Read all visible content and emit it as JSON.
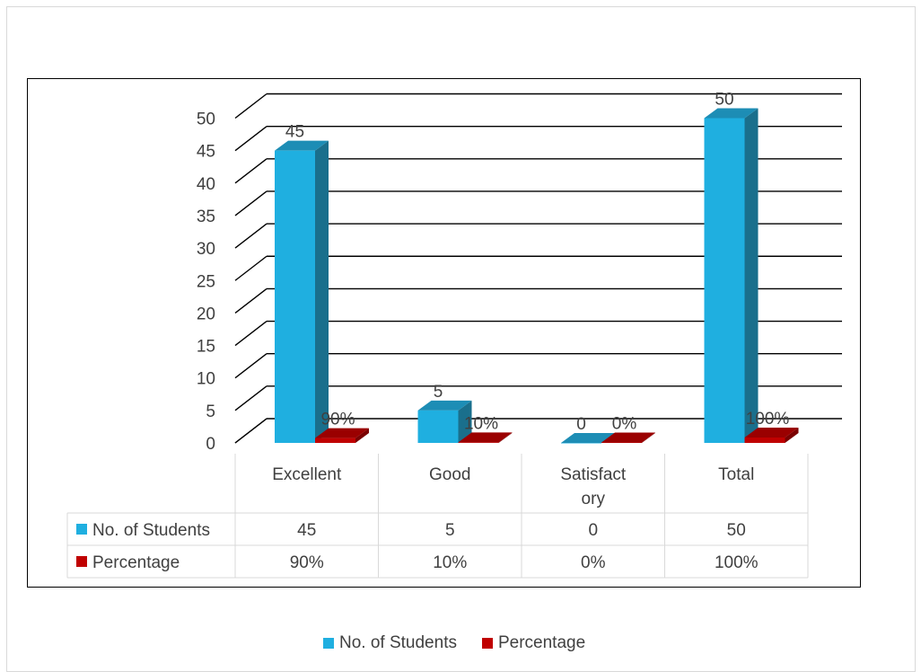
{
  "chart_data": {
    "type": "bar",
    "title": "",
    "xlabel": "",
    "ylabel": "",
    "categories": [
      "Excellent",
      "Good",
      "Satisfactory",
      "Total"
    ],
    "category_labels": [
      [
        "Excellent"
      ],
      [
        "Good"
      ],
      [
        "Satisfact",
        "ory"
      ],
      [
        "Total"
      ]
    ],
    "ylim": [
      0,
      50
    ],
    "yticks": [
      "0",
      "5",
      "10",
      "15",
      "20",
      "25",
      "30",
      "35",
      "40",
      "45",
      "50"
    ],
    "grid": true,
    "legend_position": "bottom",
    "has_data_table": true,
    "series": [
      {
        "name": "No. of Students",
        "values": [
          45,
          5,
          0,
          50
        ],
        "labels": [
          "45",
          "5",
          "0",
          "50"
        ],
        "color": "#1fafe0",
        "side_color": "#1a6f8c",
        "top_color": "#1d8db5"
      },
      {
        "name": "Percentage",
        "values": [
          0.9,
          0.1,
          0,
          1
        ],
        "labels": [
          "90%",
          "10%",
          "0%",
          "100%"
        ],
        "color": "#c00000",
        "side_color": "#7a0000",
        "top_color": "#9a0000"
      }
    ]
  }
}
